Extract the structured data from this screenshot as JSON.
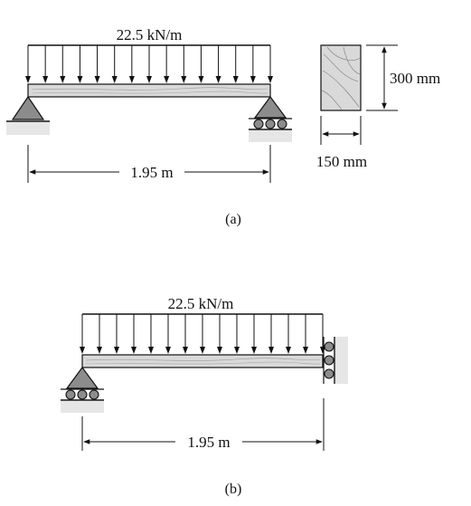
{
  "figure_a": {
    "load_label": "22.5 kN/m",
    "span_label": "1.95 m",
    "height_label": "300 mm",
    "width_label": "150 mm",
    "caption": "(a)"
  },
  "figure_b": {
    "load_label": "22.5 kN/m",
    "span_label": "1.95 m",
    "caption": "(b)"
  },
  "colors": {
    "beam_fill": "#d9d9d9",
    "support_fill": "#8c8c8c",
    "ground_fill": "#e6e6e6",
    "line": "#111111"
  }
}
